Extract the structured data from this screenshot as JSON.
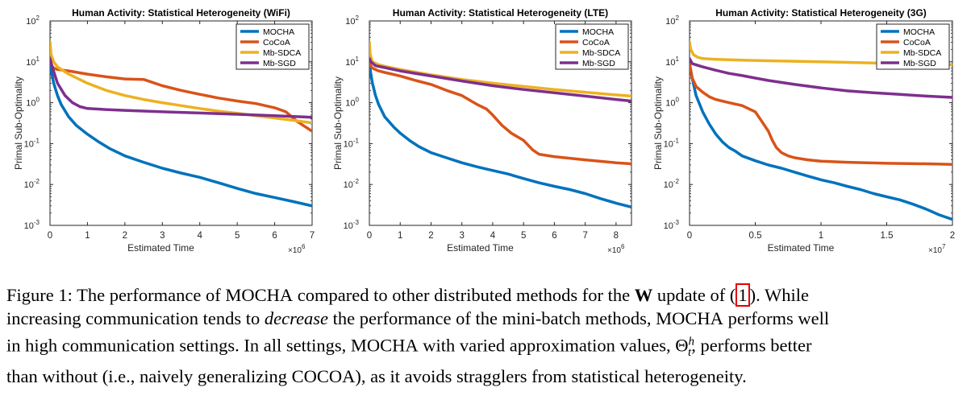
{
  "chart_data": [
    {
      "type": "line",
      "title": "Human Activity: Statistical Heterogeneity (WiFi)",
      "xlabel": "Estimated Time",
      "ylabel": "Primal Sub-Optimality",
      "x_multiplier": "×10^6",
      "xlim": [
        0,
        7
      ],
      "ylim": [
        0.001,
        100
      ],
      "yscale": "log",
      "xticks": [
        0,
        1,
        2,
        3,
        4,
        5,
        6,
        7
      ],
      "xtick_labels": [
        "0",
        "1",
        "2",
        "3",
        "4",
        "5",
        "6",
        "7"
      ],
      "legend_position": "top-right",
      "series": [
        {
          "name": "MOCHA",
          "color": "#0072BD",
          "x": [
            0,
            0.05,
            0.1,
            0.2,
            0.3,
            0.5,
            0.7,
            1.0,
            1.3,
            1.6,
            2.0,
            2.5,
            3.0,
            3.5,
            4.0,
            4.5,
            5.0,
            5.5,
            6.0,
            6.5,
            7.0
          ],
          "y": [
            9,
            5,
            3,
            1.5,
            0.9,
            0.45,
            0.28,
            0.17,
            0.11,
            0.075,
            0.05,
            0.035,
            0.025,
            0.019,
            0.015,
            0.011,
            0.008,
            0.006,
            0.0048,
            0.0038,
            0.003
          ]
        },
        {
          "name": "CoCoA",
          "color": "#D95319",
          "x": [
            0,
            0.05,
            0.1,
            0.2,
            0.5,
            1.0,
            1.5,
            2.0,
            2.5,
            3.0,
            3.5,
            4.0,
            4.5,
            5.0,
            5.5,
            6.0,
            6.3,
            6.6,
            7.0
          ],
          "y": [
            12,
            8,
            7,
            6.5,
            6.0,
            5.0,
            4.3,
            3.8,
            3.7,
            2.6,
            2.0,
            1.6,
            1.3,
            1.1,
            0.95,
            0.75,
            0.6,
            0.35,
            0.2
          ]
        },
        {
          "name": "Mb-SDCA",
          "color": "#EDB120",
          "x": [
            0,
            0.03,
            0.1,
            0.2,
            0.5,
            1.0,
            1.5,
            2.0,
            2.5,
            3.0,
            3.5,
            4.0,
            4.5,
            5.0,
            5.5,
            6.0,
            6.5,
            7.0
          ],
          "y": [
            30,
            15,
            10,
            7.5,
            5.0,
            3.0,
            2.0,
            1.5,
            1.2,
            1.0,
            0.85,
            0.72,
            0.62,
            0.55,
            0.48,
            0.42,
            0.37,
            0.32
          ]
        },
        {
          "name": "Mb-SGD",
          "color": "#7E2F8E",
          "x": [
            0,
            0.05,
            0.2,
            0.4,
            0.6,
            0.8,
            1.0,
            1.5,
            2.0,
            3.0,
            4.0,
            5.0,
            6.0,
            7.0
          ],
          "y": [
            12,
            8,
            3.0,
            1.5,
            1.0,
            0.8,
            0.72,
            0.68,
            0.65,
            0.6,
            0.56,
            0.52,
            0.48,
            0.44
          ]
        }
      ]
    },
    {
      "type": "line",
      "title": "Human Activity: Statistical Heterogeneity (LTE)",
      "xlabel": "Estimated Time",
      "ylabel": "Primal Sub-Optimality",
      "x_multiplier": "×10^6",
      "xlim": [
        0,
        8.5
      ],
      "ylim": [
        0.001,
        100
      ],
      "yscale": "log",
      "xticks": [
        0,
        1,
        2,
        3,
        4,
        5,
        6,
        7,
        8
      ],
      "xtick_labels": [
        "0",
        "1",
        "2",
        "3",
        "4",
        "5",
        "6",
        "7",
        "8"
      ],
      "legend_position": "top-right",
      "series": [
        {
          "name": "MOCHA",
          "color": "#0072BD",
          "x": [
            0,
            0.05,
            0.1,
            0.2,
            0.3,
            0.5,
            0.8,
            1.0,
            1.3,
            1.6,
            2.0,
            2.5,
            3.0,
            3.5,
            4.0,
            4.5,
            5.0,
            5.5,
            6.0,
            6.5,
            7.0,
            7.5,
            8.0,
            8.5
          ],
          "y": [
            9,
            5,
            3,
            1.5,
            0.9,
            0.45,
            0.25,
            0.18,
            0.12,
            0.085,
            0.06,
            0.045,
            0.034,
            0.027,
            0.022,
            0.018,
            0.014,
            0.011,
            0.009,
            0.0075,
            0.006,
            0.0045,
            0.0035,
            0.0028
          ]
        },
        {
          "name": "CoCoA",
          "color": "#D95319",
          "x": [
            0,
            0.1,
            0.3,
            0.5,
            1.0,
            1.5,
            2.0,
            2.5,
            3.0,
            3.5,
            3.8,
            4.0,
            4.3,
            4.6,
            5.0,
            5.3,
            5.5,
            6.0,
            7.0,
            8.0,
            8.5
          ],
          "y": [
            9,
            7,
            6.0,
            5.5,
            4.5,
            3.5,
            2.8,
            2.0,
            1.5,
            0.9,
            0.7,
            0.5,
            0.28,
            0.18,
            0.12,
            0.07,
            0.055,
            0.048,
            0.04,
            0.034,
            0.032
          ]
        },
        {
          "name": "Mb-SDCA",
          "color": "#EDB120",
          "x": [
            0,
            0.03,
            0.1,
            0.3,
            0.5,
            1.0,
            2.0,
            3.0,
            4.0,
            5.0,
            6.0,
            7.0,
            8.0,
            8.5
          ],
          "y": [
            30,
            15,
            10,
            8.5,
            7.8,
            6.5,
            4.8,
            3.7,
            3.0,
            2.5,
            2.1,
            1.8,
            1.55,
            1.45
          ]
        },
        {
          "name": "Mb-SGD",
          "color": "#7E2F8E",
          "x": [
            0,
            0.05,
            0.2,
            0.5,
            1.0,
            2.0,
            3.0,
            4.0,
            5.0,
            6.0,
            7.0,
            8.0,
            8.5
          ],
          "y": [
            12,
            10,
            8,
            7.2,
            6.0,
            4.5,
            3.4,
            2.6,
            2.1,
            1.75,
            1.45,
            1.2,
            1.1
          ]
        }
      ]
    },
    {
      "type": "line",
      "title": "Human Activity: Statistical Heterogeneity (3G)",
      "xlabel": "Estimated Time",
      "ylabel": "Primal Sub-Optimality",
      "x_multiplier": "×10^7",
      "xlim": [
        0,
        2
      ],
      "ylim": [
        0.001,
        100
      ],
      "yscale": "log",
      "xticks": [
        0,
        0.5,
        1,
        1.5,
        2
      ],
      "xtick_labels": [
        "0",
        "0.5",
        "1",
        "1.5",
        "2"
      ],
      "legend_position": "top-right",
      "series": [
        {
          "name": "MOCHA",
          "color": "#0072BD",
          "x": [
            0,
            0.02,
            0.05,
            0.1,
            0.15,
            0.2,
            0.25,
            0.3,
            0.35,
            0.4,
            0.5,
            0.6,
            0.7,
            0.8,
            0.9,
            1.0,
            1.1,
            1.2,
            1.3,
            1.4,
            1.5,
            1.6,
            1.7,
            1.8,
            1.9,
            2.0
          ],
          "y": [
            9,
            4,
            1.5,
            0.6,
            0.3,
            0.17,
            0.11,
            0.08,
            0.065,
            0.05,
            0.038,
            0.03,
            0.025,
            0.02,
            0.016,
            0.013,
            0.011,
            0.009,
            0.0075,
            0.006,
            0.005,
            0.0042,
            0.0033,
            0.0025,
            0.0018,
            0.0014
          ]
        },
        {
          "name": "CoCoA",
          "color": "#D95319",
          "x": [
            0,
            0.02,
            0.05,
            0.1,
            0.15,
            0.2,
            0.3,
            0.4,
            0.5,
            0.55,
            0.6,
            0.63,
            0.66,
            0.7,
            0.75,
            0.8,
            0.9,
            1.0,
            1.2,
            1.5,
            1.8,
            2.0
          ],
          "y": [
            9,
            4,
            2.5,
            1.8,
            1.4,
            1.2,
            1.0,
            0.85,
            0.6,
            0.35,
            0.2,
            0.12,
            0.08,
            0.06,
            0.05,
            0.045,
            0.04,
            0.037,
            0.035,
            0.033,
            0.032,
            0.031
          ]
        },
        {
          "name": "Mb-SDCA",
          "color": "#EDB120",
          "x": [
            0,
            0.01,
            0.03,
            0.06,
            0.1,
            0.2,
            0.4,
            0.6,
            0.8,
            1.0,
            1.2,
            1.4,
            1.6,
            1.8,
            2.0
          ],
          "y": [
            30,
            20,
            15,
            13,
            12,
            11.5,
            11,
            10.6,
            10.3,
            10,
            9.7,
            9.4,
            9.1,
            8.8,
            8.5
          ]
        },
        {
          "name": "Mb-SGD",
          "color": "#7E2F8E",
          "x": [
            0,
            0.02,
            0.1,
            0.2,
            0.3,
            0.4,
            0.5,
            0.6,
            0.8,
            1.0,
            1.2,
            1.4,
            1.6,
            1.8,
            2.0
          ],
          "y": [
            12,
            9,
            7.5,
            6.2,
            5.2,
            4.6,
            4.0,
            3.5,
            2.8,
            2.3,
            1.95,
            1.75,
            1.6,
            1.45,
            1.35
          ]
        }
      ]
    }
  ],
  "caption": {
    "figure_label": "Figure 1:",
    "l1_a": "The performance of M",
    "l1_mocha_sc": "OCHA",
    "l1_b": " compared to other distributed methods for the ",
    "l1_bold": "W",
    "l1_c": " update of (",
    "l1_ref": "1",
    "l1_d": "). While",
    "l2_a": "increasing communication tends to ",
    "l2_em": "decrease",
    "l2_b": " the performance of the mini-batch methods, M",
    "l2_mocha_sc": "OCHA",
    "l2_c": " performs well",
    "l3_a": "in high communication settings. In all settings, M",
    "l3_mocha_sc": "OCHA",
    "l3_b": " with varied approximation values, Θ",
    "l3_sup": "h",
    "l3_sub": "t",
    "l3_c": ", performs better",
    "l4_a": "than without (i.e., naively generalizing C",
    "l4_sc1": "O",
    "l4_b": "C",
    "l4_sc2": "O",
    "l4_c": "A), as it avoids stragglers from statistical heterogeneity."
  }
}
